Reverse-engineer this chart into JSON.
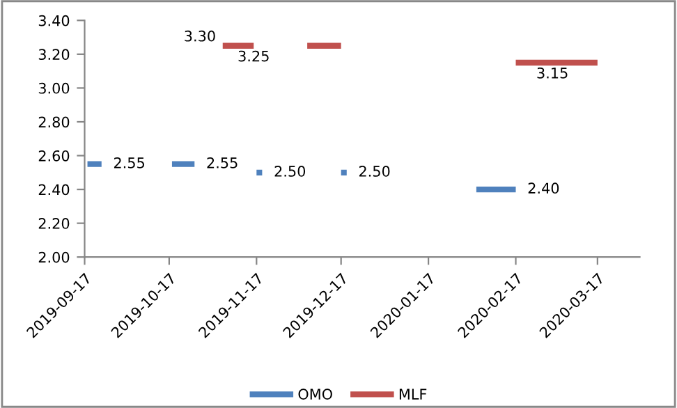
{
  "chart_data": {
    "type": "line",
    "ylim": [
      2.0,
      3.4
    ],
    "yticks": [
      {
        "value": 2.0,
        "label": "2.00"
      },
      {
        "value": 2.2,
        "label": "2.20"
      },
      {
        "value": 2.4,
        "label": "2.40"
      },
      {
        "value": 2.6,
        "label": "2.60"
      },
      {
        "value": 2.8,
        "label": "2.80"
      },
      {
        "value": 3.0,
        "label": "3.00"
      },
      {
        "value": 3.2,
        "label": "3.20"
      },
      {
        "value": 3.4,
        "label": "3.40"
      }
    ],
    "xlim": [
      "2019-09-17",
      "2020-04-01"
    ],
    "xticks": [
      "2019-09-17",
      "2019-10-17",
      "2019-11-17",
      "2019-12-17",
      "2020-01-17",
      "2020-02-17",
      "2020-03-17"
    ],
    "series": [
      {
        "name": "OMO",
        "color": "#4f81bd",
        "x": [
          "2019-09-18",
          "2019-09-23",
          "2019-10-07",
          "2019-10-18",
          "2019-10-26",
          "2019-11-05",
          "2019-11-17",
          "2019-11-19",
          "2019-12-01",
          "2019-12-17",
          "2019-12-19",
          "2020-01-15",
          "2020-02-03",
          "2020-02-17"
        ],
        "values": [
          2.55,
          2.55,
          null,
          2.55,
          2.55,
          null,
          2.5,
          2.5,
          null,
          2.5,
          2.5,
          null,
          2.4,
          2.4
        ],
        "value_labels": [
          null,
          "2.55",
          null,
          null,
          "2.55",
          null,
          null,
          "2.50",
          null,
          null,
          "2.50",
          null,
          null,
          "2.40"
        ]
      },
      {
        "name": "MLF",
        "color": "#c0504d",
        "x": [
          "2019-11-05",
          "2019-11-16",
          "2019-11-25",
          "2019-12-05",
          "2019-12-17",
          "2020-01-15",
          "2020-02-17",
          "2020-03-01",
          "2020-03-17"
        ],
        "values": [
          3.25,
          3.25,
          null,
          3.25,
          3.25,
          null,
          3.15,
          3.15,
          3.15
        ],
        "value_labels": [
          null,
          "3.25",
          null,
          null,
          null,
          null,
          null,
          "3.15",
          null
        ]
      }
    ],
    "annotations": [
      {
        "text": "3.30",
        "x": "2019-11-04",
        "y": 3.3
      }
    ],
    "legend": "bottom",
    "grid": false,
    "marker": "none",
    "line_style": "solid"
  }
}
